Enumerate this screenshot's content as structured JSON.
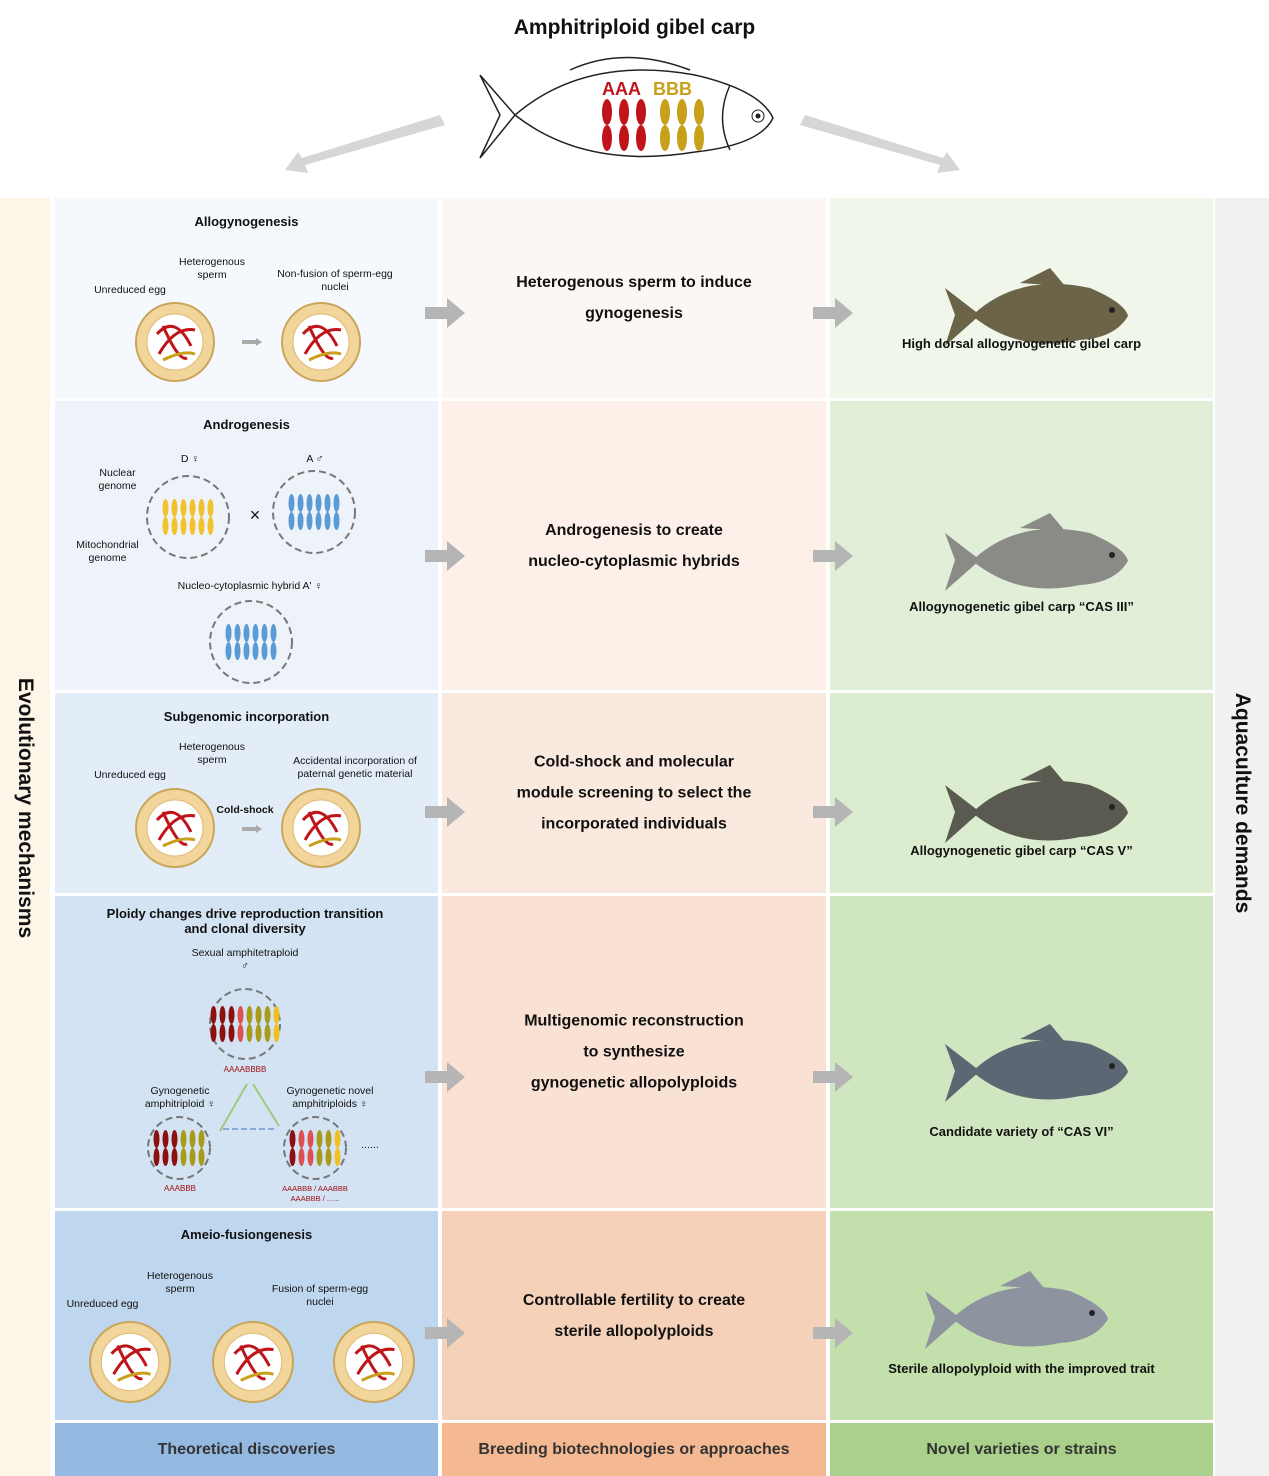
{
  "title": "Amphitriploid gibel carp",
  "fish_labels": {
    "a": "AAA",
    "b": "BBB"
  },
  "left_label": "Evolutionary mechanisms",
  "right_label": "Aquaculture demands",
  "rows": [
    {
      "mechanism": "Allogynogenesis",
      "labels": [
        "Unreduced egg",
        "Heterogenous sperm",
        "Non-fusion of sperm-egg nuclei"
      ],
      "approach": [
        "Heterogenous sperm to induce",
        "gynogenesis"
      ],
      "variety": "High dorsal allogynogenetic gibel carp"
    },
    {
      "mechanism": "Androgenesis",
      "labels": [
        "D ♀",
        "A ♂",
        "Nuclear genome",
        "Mitochondrial genome",
        "Nucleo-cytoplasmic hybrid A' ♀",
        "×"
      ],
      "approach": [
        "Androgenesis to create",
        "nucleo-cytoplasmic hybrids"
      ],
      "variety": "Allogynogenetic gibel carp “CAS III”"
    },
    {
      "mechanism": "Subgenomic incorporation",
      "labels": [
        "Unreduced egg",
        "Heterogenous sperm",
        "Cold-shock",
        "Accidental incorporation of paternal genetic material"
      ],
      "approach": [
        "Cold-shock and molecular",
        "module screening to select the",
        "incorporated individuals"
      ],
      "variety": "Allogynogenetic gibel carp “CAS V”"
    },
    {
      "mechanism": "Ploidy changes drive reproduction transition and clonal diversity",
      "labels": [
        "Sexual amphitetraploid ♂",
        "AAAABBBB",
        "Gynogenetic amphitriploid ♀",
        "Gynogenetic novel amphitriploids ♀",
        "AAABBB",
        "AAABBB / AAABBB",
        "AAABBB / ......",
        "......"
      ],
      "approach": [
        "Multigenomic reconstruction",
        "to synthesize",
        "gynogenetic allopolyploids"
      ],
      "variety": "Candidate variety of “CAS VI”"
    },
    {
      "mechanism": "Ameio-fusiongenesis",
      "labels": [
        "Unreduced egg",
        "Heterogenous sperm",
        "Fusion of sperm-egg nuclei"
      ],
      "approach": [
        "Controllable fertility to create",
        "sterile allopolyploids"
      ],
      "variety": "Sterile allopolyploid with the improved trait"
    }
  ],
  "footer": [
    "Theoretical discoveries",
    "Breeding biotechnologies or approaches",
    "Novel varieties or strains"
  ],
  "colors": {
    "col1": [
      "#f5f8fc",
      "#eef3fa",
      "#e3edf7",
      "#d3e3f3",
      "#bed6ee",
      "#93b9e0"
    ],
    "col2": [
      "#fdf7f3",
      "#fcf0e9",
      "#fae9de",
      "#f9e2d4",
      "#f6d1ba",
      "#f4b992"
    ],
    "col3": [
      "#f0f6ea",
      "#e2efd8",
      "#dcecce",
      "#d0e6c0",
      "#c3dfab",
      "#a9d18c"
    ],
    "red": "#c0141b",
    "gold": "#c8a01a",
    "blue": "#5b9bd5"
  }
}
